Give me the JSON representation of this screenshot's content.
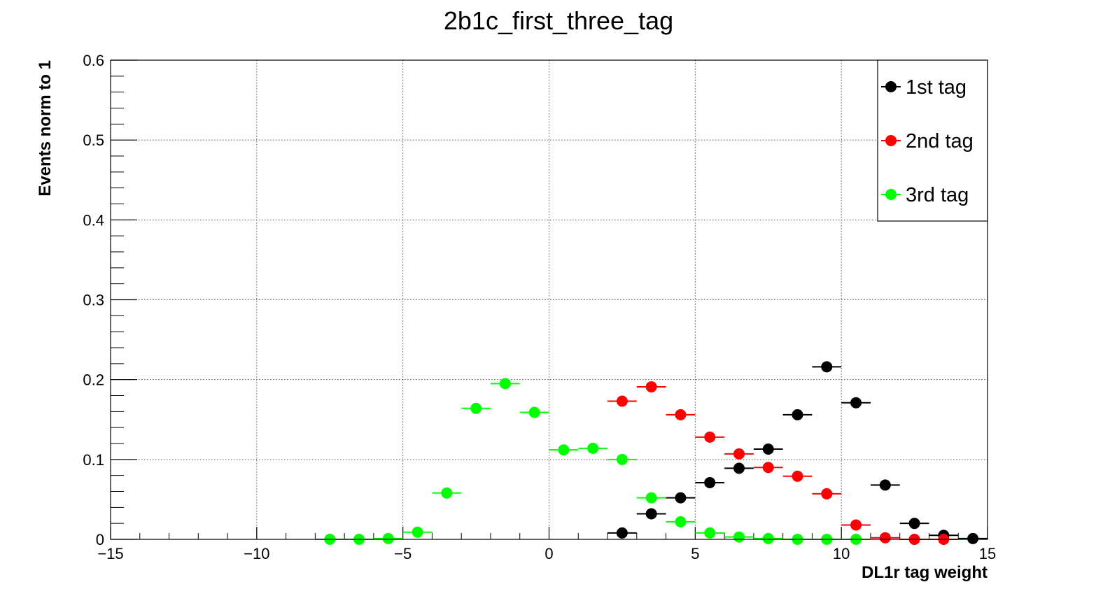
{
  "chart_data": {
    "type": "scatter",
    "title": "2b1c_first_three_tag",
    "xlabel": "DL1r tag weight",
    "ylabel": "Events norm to 1",
    "xlim": [
      -15,
      15
    ],
    "ylim": [
      0,
      0.6
    ],
    "x_ticks": [
      -15,
      -10,
      -5,
      0,
      5,
      10,
      15
    ],
    "y_ticks": [
      0,
      0.1,
      0.2,
      0.3,
      0.4,
      0.5,
      0.6
    ],
    "x_tick_labels": [
      "−15",
      "−10",
      "−5",
      "0",
      "5",
      "10",
      "15"
    ],
    "y_tick_labels": [
      "0",
      "0.1",
      "0.2",
      "0.3",
      "0.4",
      "0.5",
      "0.6"
    ],
    "grid": true,
    "bin_width": 1,
    "legend_position": "top-right",
    "series": [
      {
        "name": "1st tag",
        "color": "#000000",
        "points": [
          {
            "x": 2.5,
            "y": 0.008
          },
          {
            "x": 3.5,
            "y": 0.032
          },
          {
            "x": 4.5,
            "y": 0.052
          },
          {
            "x": 5.5,
            "y": 0.071
          },
          {
            "x": 6.5,
            "y": 0.089
          },
          {
            "x": 7.5,
            "y": 0.113
          },
          {
            "x": 8.5,
            "y": 0.156
          },
          {
            "x": 9.5,
            "y": 0.216
          },
          {
            "x": 10.5,
            "y": 0.171
          },
          {
            "x": 11.5,
            "y": 0.068
          },
          {
            "x": 12.5,
            "y": 0.02
          },
          {
            "x": 13.5,
            "y": 0.005
          },
          {
            "x": 14.5,
            "y": 0.001
          }
        ]
      },
      {
        "name": "2nd tag",
        "color": "#ff0000",
        "points": [
          {
            "x": 2.5,
            "y": 0.173
          },
          {
            "x": 3.5,
            "y": 0.191
          },
          {
            "x": 4.5,
            "y": 0.156
          },
          {
            "x": 5.5,
            "y": 0.128
          },
          {
            "x": 6.5,
            "y": 0.107
          },
          {
            "x": 7.5,
            "y": 0.09
          },
          {
            "x": 8.5,
            "y": 0.079
          },
          {
            "x": 9.5,
            "y": 0.057
          },
          {
            "x": 10.5,
            "y": 0.018
          },
          {
            "x": 11.5,
            "y": 0.002
          },
          {
            "x": 12.5,
            "y": 0.0
          },
          {
            "x": 13.5,
            "y": 0.0
          }
        ]
      },
      {
        "name": "3rd tag",
        "color": "#00ff00",
        "points": [
          {
            "x": -7.5,
            "y": 0.0
          },
          {
            "x": -6.5,
            "y": 0.0
          },
          {
            "x": -5.5,
            "y": 0.001
          },
          {
            "x": -4.5,
            "y": 0.009
          },
          {
            "x": -3.5,
            "y": 0.058
          },
          {
            "x": -2.5,
            "y": 0.164
          },
          {
            "x": -1.5,
            "y": 0.195
          },
          {
            "x": -0.5,
            "y": 0.159
          },
          {
            "x": 0.5,
            "y": 0.112
          },
          {
            "x": 1.5,
            "y": 0.114
          },
          {
            "x": 2.5,
            "y": 0.1
          },
          {
            "x": 3.5,
            "y": 0.052
          },
          {
            "x": 4.5,
            "y": 0.022
          },
          {
            "x": 5.5,
            "y": 0.008
          },
          {
            "x": 6.5,
            "y": 0.003
          },
          {
            "x": 7.5,
            "y": 0.001
          },
          {
            "x": 8.5,
            "y": 0.0
          },
          {
            "x": 9.5,
            "y": 0.0
          },
          {
            "x": 10.5,
            "y": 0.0
          }
        ]
      }
    ]
  }
}
